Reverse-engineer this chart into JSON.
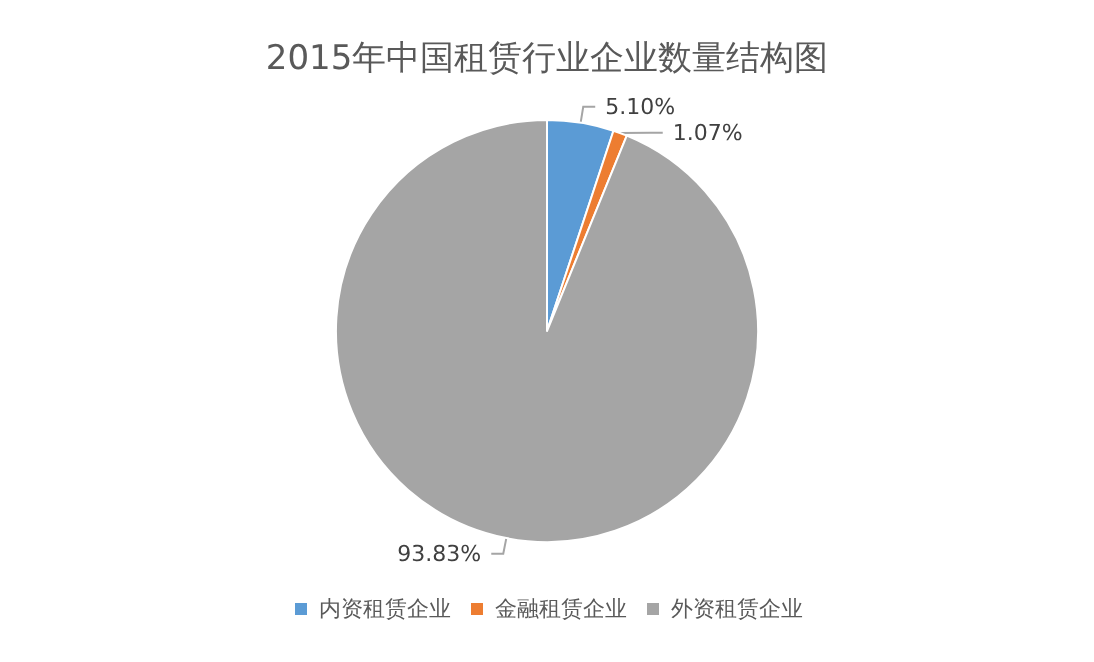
{
  "chart_data": {
    "type": "pie",
    "title": "2015年中国租赁行业企业数量结构图",
    "categories": [
      "内资租赁企业",
      "金融租赁企业",
      "外资租赁企业"
    ],
    "values": [
      5.1,
      1.07,
      93.83
    ],
    "colors": [
      "#5b9bd5",
      "#ed7d31",
      "#a5a5a5"
    ],
    "value_labels": [
      "5.10%",
      "1.07%",
      "93.83%"
    ],
    "legend": "bottom"
  }
}
